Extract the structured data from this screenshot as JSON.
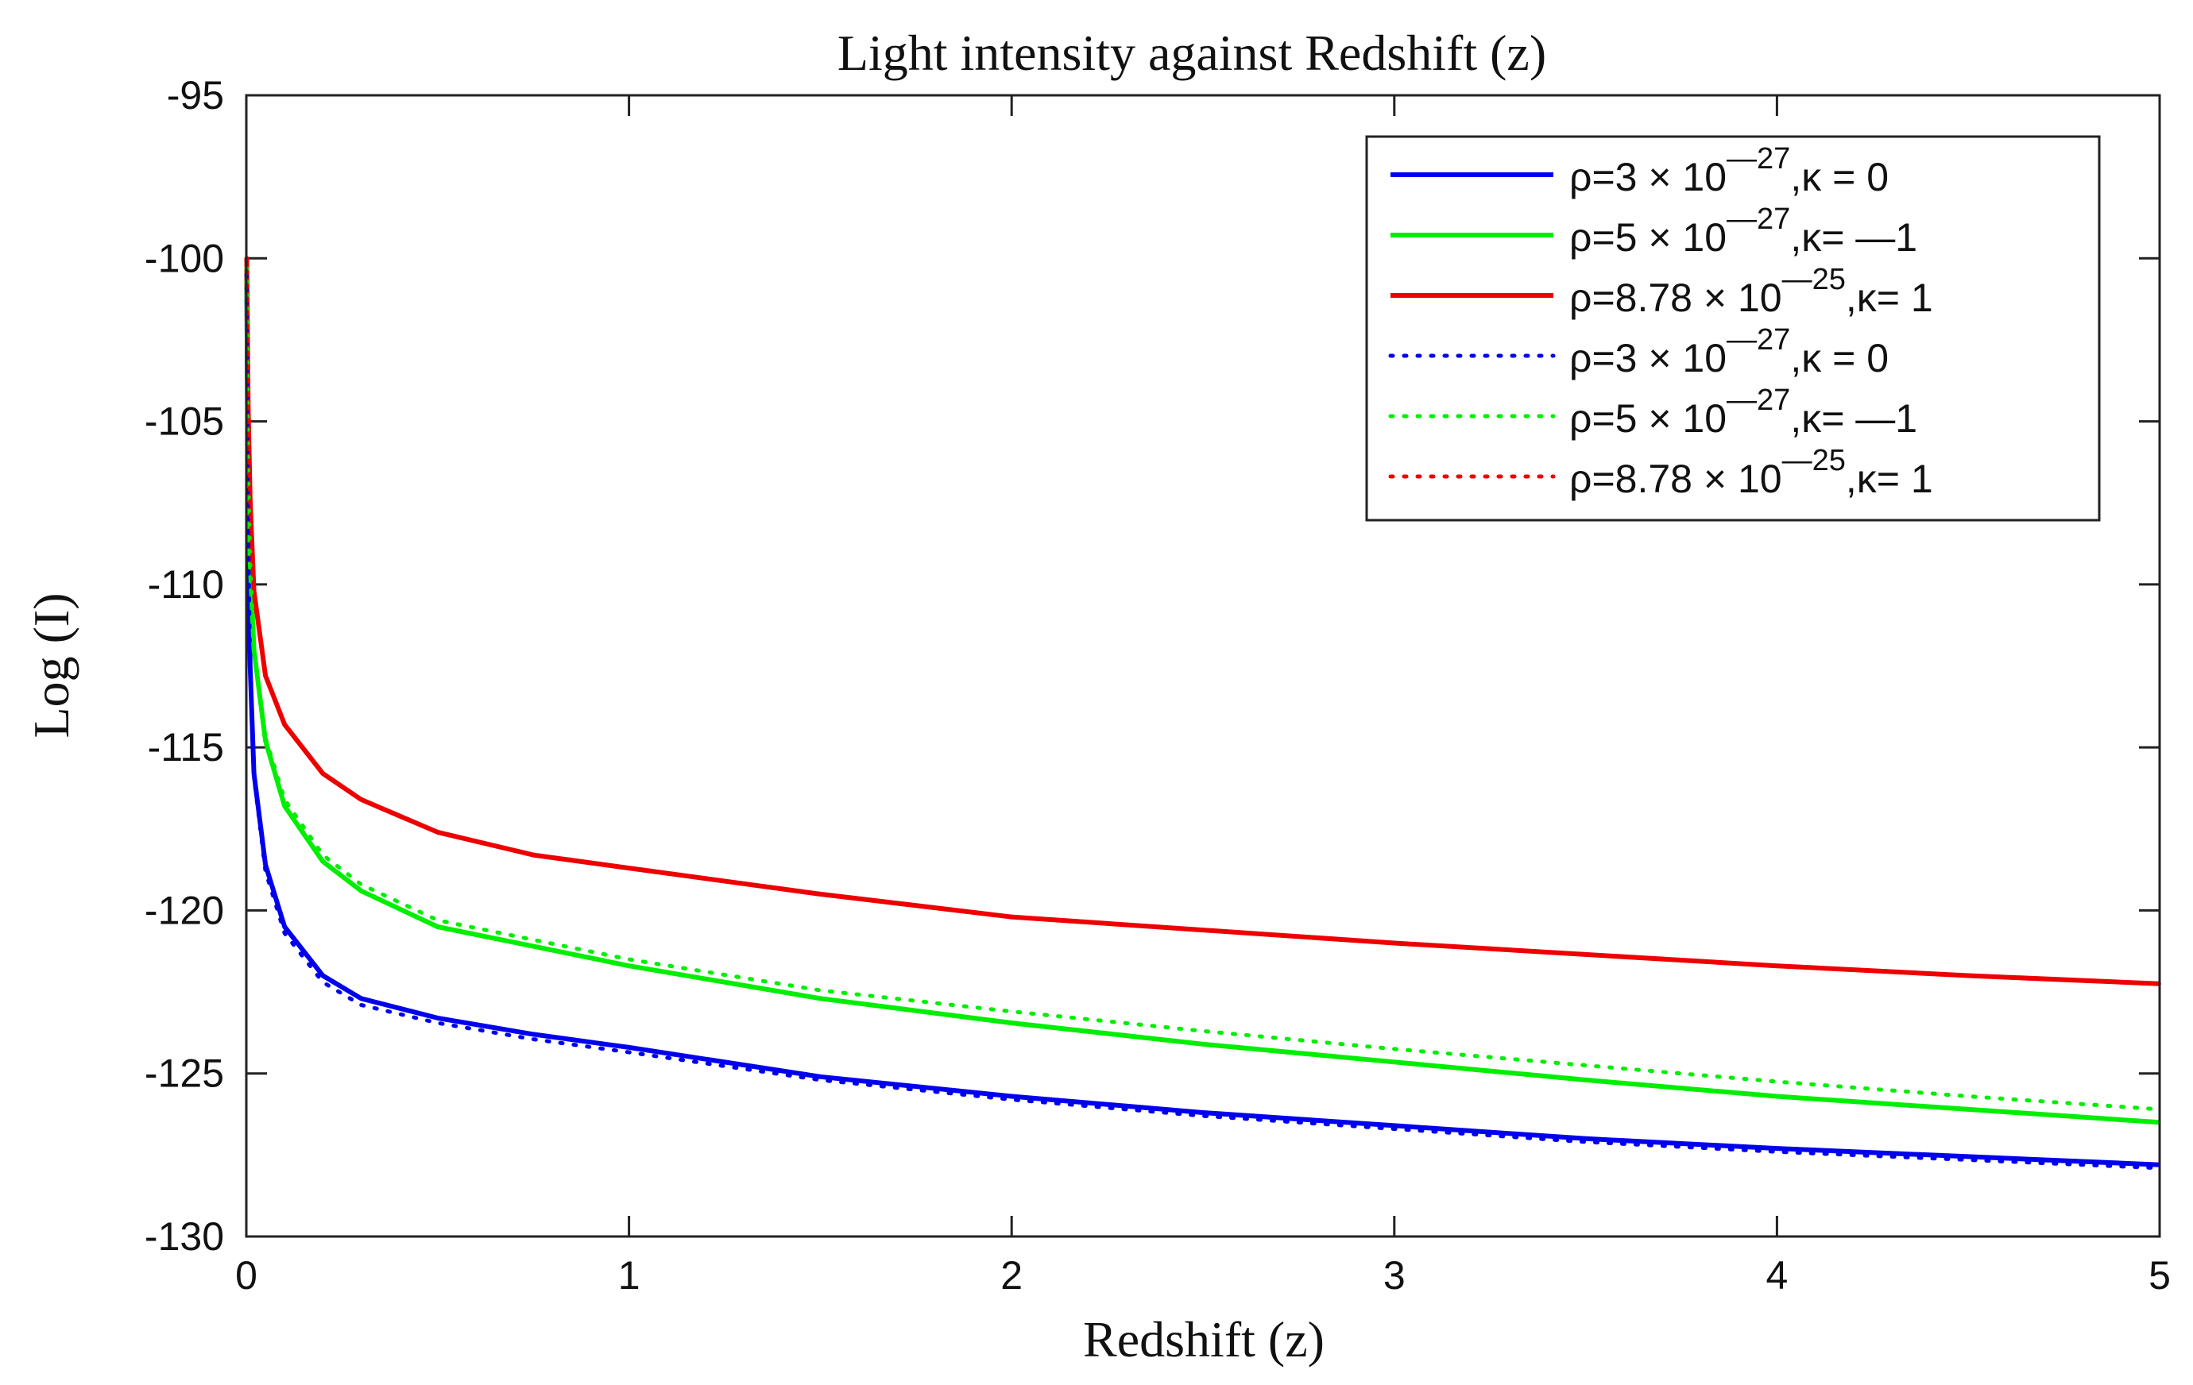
{
  "chart_data": {
    "type": "line",
    "title": "Light intensity against Redshift (z)",
    "xlabel": "Redshift (z)",
    "ylabel": "Log (I)",
    "xlim": [
      0,
      5
    ],
    "ylim": [
      -130,
      -95
    ],
    "xticks": [
      "0",
      "1",
      "2",
      "3",
      "4",
      "5"
    ],
    "yticks": [
      "-95",
      "-100",
      "-105",
      "-110",
      "-115",
      "-120",
      "-125",
      "-130"
    ],
    "legend_position": "top-right",
    "x": [
      0.001,
      0.005,
      0.01,
      0.02,
      0.05,
      0.1,
      0.2,
      0.3,
      0.5,
      0.75,
      1,
      1.5,
      2,
      2.5,
      3,
      3.5,
      4,
      4.5,
      5
    ],
    "series": [
      {
        "name": "rho=3 × 10^-27, kappa = 0 (solid)",
        "legend": {
          "pre": "ρ=3 × 10",
          "exp": "—27",
          "post": ",κ = 0"
        },
        "color": "#0000ee",
        "style": "solid",
        "values": [
          -100.5,
          -108.5,
          -112.5,
          -115.8,
          -118.6,
          -120.5,
          -122.0,
          -122.7,
          -123.3,
          -123.8,
          -124.2,
          -125.1,
          -125.7,
          -126.2,
          -126.6,
          -127.0,
          -127.3,
          -127.55,
          -127.8
        ]
      },
      {
        "name": "rho=5 × 10^-27, kappa = -1 (solid)",
        "legend": {
          "pre": "ρ=5 × 10",
          "exp": "—27",
          "post": ",κ= —1"
        },
        "color": "#00ee00",
        "style": "solid",
        "values": [
          -100.3,
          -106.5,
          -109.3,
          -112.0,
          -114.8,
          -116.8,
          -118.5,
          -119.4,
          -120.5,
          -121.1,
          -121.7,
          -122.7,
          -123.45,
          -124.1,
          -124.65,
          -125.2,
          -125.7,
          -126.1,
          -126.5
        ]
      },
      {
        "name": "rho=8.78 × 10^-25, kappa = 1 (solid)",
        "legend": {
          "pre": "ρ=8.78 × 10",
          "exp": "—25",
          "post": ",κ= 1"
        },
        "color": "#ee0000",
        "style": "solid",
        "values": [
          -100.0,
          -104.6,
          -107.4,
          -110.2,
          -112.8,
          -114.3,
          -115.8,
          -116.6,
          -117.6,
          -118.3,
          -118.7,
          -119.5,
          -120.2,
          -120.6,
          -121.0,
          -121.35,
          -121.7,
          -122.0,
          -122.25
        ]
      },
      {
        "name": "rho=3 × 10^-27, kappa = 0 (dotted)",
        "legend": {
          "pre": "ρ=3 × 10",
          "exp": "—27",
          "post": ",κ = 0"
        },
        "color": "#0000ee",
        "style": "dotted",
        "values": [
          -100.5,
          -108.5,
          -112.5,
          -115.9,
          -118.8,
          -120.7,
          -122.2,
          -122.9,
          -123.45,
          -123.95,
          -124.35,
          -125.2,
          -125.8,
          -126.3,
          -126.7,
          -127.1,
          -127.4,
          -127.65,
          -127.9
        ]
      },
      {
        "name": "rho=5 × 10^-27, kappa = -1 (dotted)",
        "legend": {
          "pre": "ρ=5 × 10",
          "exp": "—27",
          "post": ",κ= —1"
        },
        "color": "#00ee00",
        "style": "dotted",
        "values": [
          -100.3,
          -106.5,
          -109.3,
          -112.0,
          -114.7,
          -116.6,
          -118.3,
          -119.2,
          -120.3,
          -120.9,
          -121.5,
          -122.45,
          -123.1,
          -123.7,
          -124.25,
          -124.75,
          -125.25,
          -125.7,
          -126.1
        ]
      },
      {
        "name": "rho=8.78 × 10^-25, kappa = 1 (dotted)",
        "legend": {
          "pre": "ρ=8.78 × 10",
          "exp": "—25",
          "post": ",κ= 1"
        },
        "color": "#ee0000",
        "style": "dotted",
        "values": [
          -100.0,
          -104.6,
          -107.4,
          -110.2,
          -112.8,
          -114.3,
          -115.8,
          -116.6,
          -117.6,
          -118.3,
          -118.7,
          -119.5,
          -120.2,
          -120.6,
          -121.0,
          -121.35,
          -121.7,
          -122.0,
          -122.25
        ]
      }
    ]
  }
}
